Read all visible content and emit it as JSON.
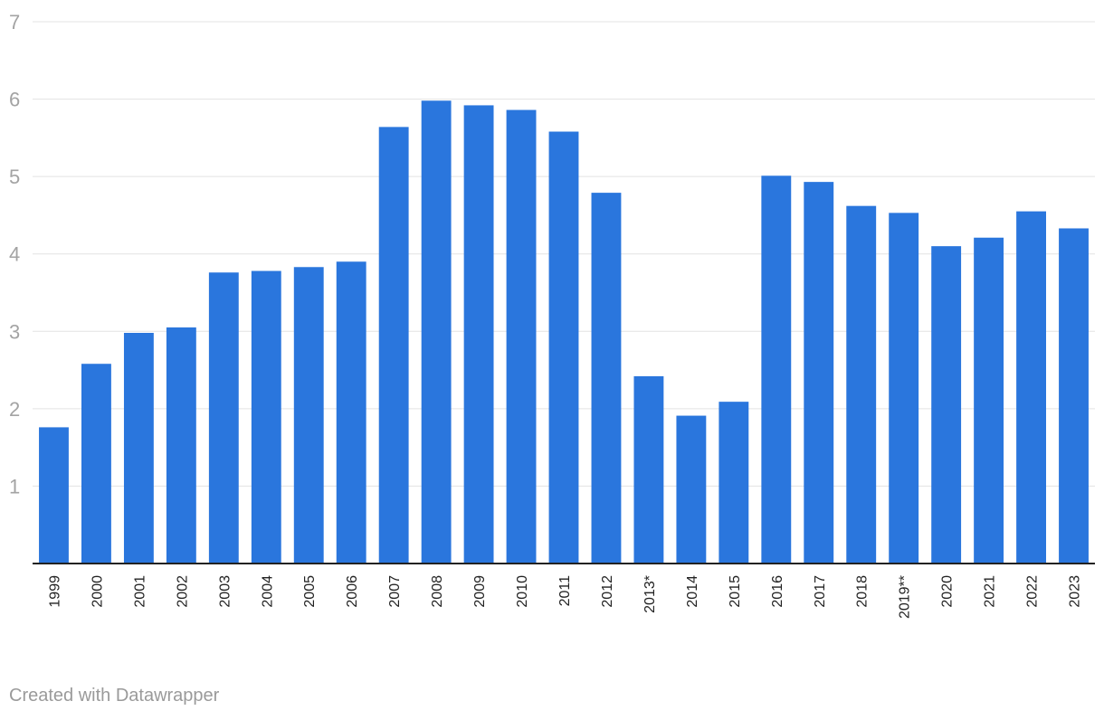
{
  "chart_data": {
    "type": "bar",
    "title": "",
    "xlabel": "",
    "ylabel": "",
    "ylim": [
      0,
      7
    ],
    "yticks": [
      1,
      2,
      3,
      4,
      5,
      6,
      7
    ],
    "grid": true,
    "bar_color": "#2a76dd",
    "categories": [
      "1999",
      "2000",
      "2001",
      "2002",
      "2003",
      "2004",
      "2005",
      "2006",
      "2007",
      "2008",
      "2009",
      "2010",
      "2011",
      "2012",
      "2013*",
      "2014",
      "2015",
      "2016",
      "2017",
      "2018",
      "2019**",
      "2020",
      "2021",
      "2022",
      "2023"
    ],
    "values": [
      1.76,
      2.58,
      2.98,
      3.05,
      3.76,
      3.78,
      3.83,
      3.9,
      5.64,
      5.98,
      5.92,
      5.86,
      5.58,
      4.79,
      2.42,
      1.91,
      2.09,
      5.01,
      4.93,
      4.62,
      4.53,
      4.1,
      4.21,
      4.55,
      4.33
    ]
  },
  "credit": "Created with Datawrapper"
}
